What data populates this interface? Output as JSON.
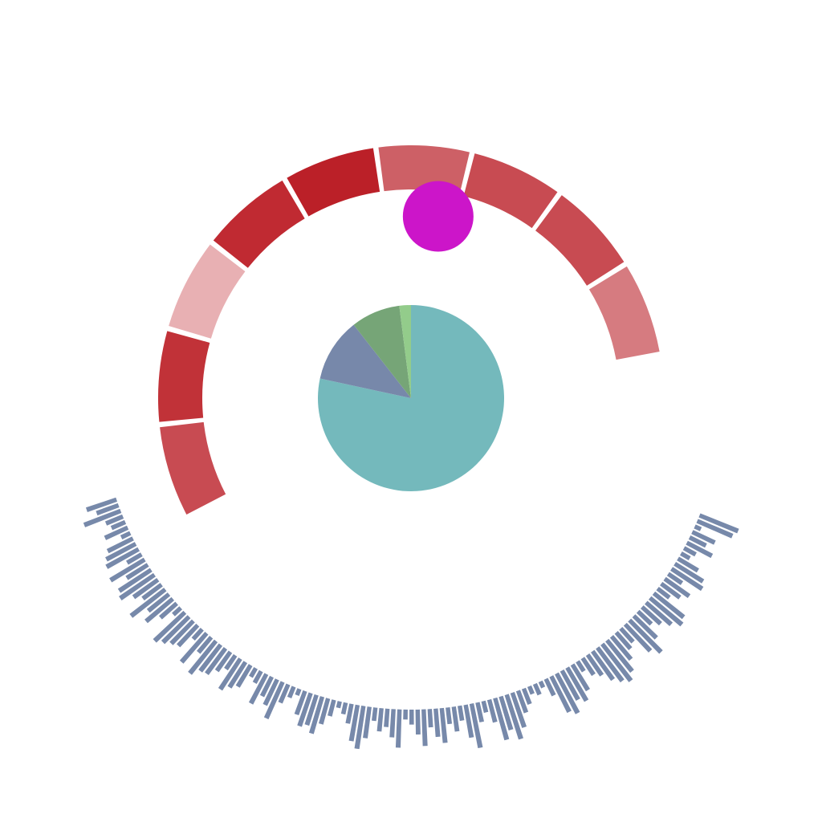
{
  "chart_data": [
    {
      "type": "pie",
      "slices": [
        {
          "value": 78,
          "color": "#74b9bc"
        },
        {
          "value": 11,
          "color": "#7788aa"
        },
        {
          "value": 8.5,
          "color": "#76a577"
        },
        {
          "value": 2,
          "color": "#93cc8b"
        }
      ]
    },
    {
      "type": "bar",
      "layout": "radial-ring",
      "segments": [
        {
          "value": 0.72,
          "color": "#c84b52"
        },
        {
          "value": 0.78,
          "color": "#c13238"
        },
        {
          "value": 0.35,
          "color": "#e8b0b3"
        },
        {
          "value": 0.82,
          "color": "#c02a32"
        },
        {
          "value": 0.9,
          "color": "#bb2028"
        },
        {
          "value": 0.62,
          "color": "#cd6066"
        },
        {
          "value": 0.74,
          "color": "#c84b52"
        },
        {
          "value": 0.74,
          "color": "#c84b52"
        },
        {
          "value": 0.52,
          "color": "#d67b80"
        }
      ]
    },
    {
      "type": "bar",
      "layout": "radial-bars",
      "color": "#7789aa",
      "values": [
        38,
        28,
        47,
        22,
        18,
        30,
        12,
        34,
        40,
        44,
        20,
        48,
        30,
        46,
        50,
        36,
        28,
        52,
        32,
        42,
        26,
        12,
        50,
        44,
        38,
        34,
        16,
        46,
        24,
        50,
        40,
        38,
        28,
        20,
        44,
        36,
        30,
        12,
        16,
        40,
        26,
        34,
        48,
        24,
        14,
        8,
        30,
        42,
        38,
        46,
        32,
        20,
        8,
        14,
        24,
        44,
        52,
        38,
        16,
        28,
        22,
        34,
        46,
        12,
        18,
        30,
        44,
        22,
        34,
        42,
        20,
        30,
        18,
        40,
        54,
        24,
        14,
        28,
        52,
        42,
        56,
        44,
        28,
        20,
        10,
        14,
        8,
        22,
        48,
        54,
        40,
        46,
        36,
        14,
        24,
        30,
        42,
        50,
        56,
        48,
        36,
        26,
        22,
        44,
        54,
        38,
        22,
        30,
        40,
        50,
        46,
        18,
        28,
        36,
        20,
        44,
        40,
        28,
        12,
        16,
        34,
        22,
        30,
        8,
        46,
        50
      ]
    },
    {
      "type": "scatter",
      "points": [
        {
          "color": "#cc15c9"
        }
      ]
    }
  ]
}
